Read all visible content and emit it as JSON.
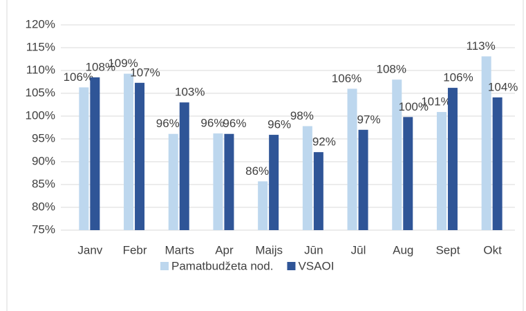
{
  "chart_data": {
    "type": "bar",
    "categories": [
      "Janv",
      "Febr",
      "Marts",
      "Apr",
      "Maijs",
      "Jūn",
      "Jūl",
      "Aug",
      "Sept",
      "Okt"
    ],
    "series": [
      {
        "name": "Pamatbudžeta nod.",
        "color": "#bdd7ee",
        "values": [
          106.3,
          109.3,
          96.1,
          96.2,
          85.7,
          97.8,
          106.0,
          108.0,
          100.9,
          113.1
        ],
        "value_labels": [
          "106%",
          "109%",
          "96%",
          "96%",
          "86%",
          "98%",
          "106%",
          "108%",
          "101%",
          "113%"
        ]
      },
      {
        "name": "VSAOI",
        "color": "#2f5597",
        "values": [
          108.5,
          107.3,
          103.0,
          96.1,
          95.9,
          92.1,
          97.0,
          99.8,
          106.2,
          104.1
        ],
        "value_labels": [
          "108%",
          "107%",
          "103%",
          "96%",
          "96%",
          "92%",
          "97%",
          "100%",
          "106%",
          "104%"
        ]
      }
    ],
    "ylim": [
      75,
      120
    ],
    "yticks": [
      {
        "value": 75,
        "label": "75%"
      },
      {
        "value": 80,
        "label": "80%"
      },
      {
        "value": 85,
        "label": "85%"
      },
      {
        "value": 90,
        "label": "90%"
      },
      {
        "value": 95,
        "label": "95%"
      },
      {
        "value": 100,
        "label": "100%"
      },
      {
        "value": 105,
        "label": "105%"
      },
      {
        "value": 110,
        "label": "110%"
      },
      {
        "value": 115,
        "label": "115%"
      },
      {
        "value": 120,
        "label": "120%"
      }
    ],
    "grid": true,
    "legend": "bottom"
  }
}
